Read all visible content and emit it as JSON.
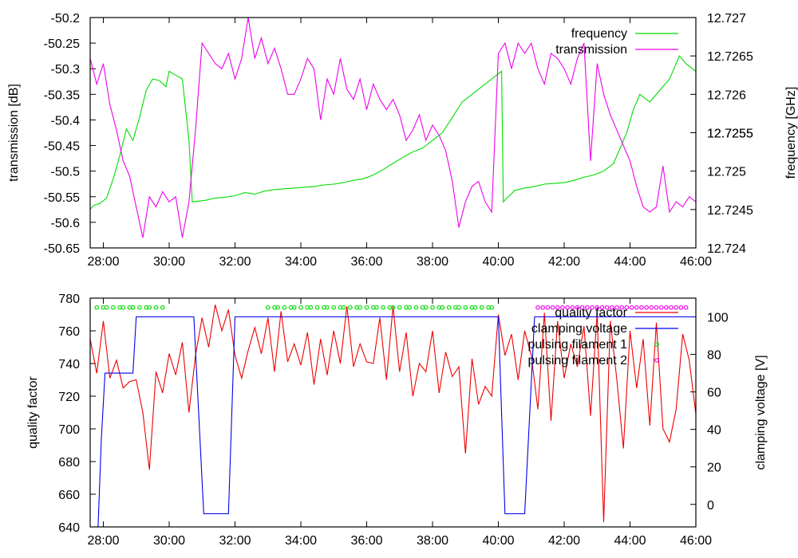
{
  "chart_data": [
    {
      "type": "line",
      "ylabel": "transmission [dB]",
      "y2label": "frequency [GHz]",
      "x_ticks": [
        "28:00",
        "30:00",
        "32:00",
        "34:00",
        "36:00",
        "38:00",
        "40:00",
        "42:00",
        "44:00",
        "46:00"
      ],
      "xlim": [
        27.6,
        46.0
      ],
      "ylim": [
        -50.65,
        -50.2
      ],
      "y_ticks": [
        "-50.2",
        "-50.25",
        "-50.3",
        "-50.35",
        "-50.4",
        "-50.45",
        "-50.5",
        "-50.55",
        "-50.6",
        "-50.65"
      ],
      "y2lim": [
        12.724,
        12.727
      ],
      "y2_ticks": [
        "12.727",
        "12.7265",
        "12.726",
        "12.7255",
        "12.7255",
        "12.725",
        "12.7245",
        "12.724"
      ],
      "legend_position": "top-right",
      "series": [
        {
          "name": "frequency",
          "axis": "right",
          "color": "#00dd00",
          "x": [
            27.6,
            27.7,
            27.9,
            28.1,
            28.3,
            28.5,
            28.7,
            28.9,
            29.1,
            29.3,
            29.5,
            29.7,
            29.9,
            30.0,
            30.2,
            30.4,
            30.6,
            30.7,
            31.1,
            31.4,
            31.7,
            32.0,
            32.3,
            32.6,
            32.9,
            33.2,
            33.5,
            33.8,
            34.1,
            34.4,
            34.7,
            35.0,
            35.3,
            35.6,
            35.9,
            36.2,
            36.5,
            36.8,
            37.1,
            37.4,
            37.7,
            38.0,
            38.3,
            38.6,
            38.9,
            39.2,
            39.5,
            39.8,
            40.1,
            40.15,
            40.5,
            40.8,
            41.1,
            41.4,
            41.7,
            42.0,
            42.3,
            42.6,
            42.9,
            43.2,
            43.5,
            43.7,
            43.9,
            44.1,
            44.3,
            44.6,
            44.9,
            45.2,
            45.5,
            45.7,
            46.0
          ],
          "y": [
            12.7245,
            12.72455,
            12.72458,
            12.72465,
            12.7249,
            12.7252,
            12.72555,
            12.7254,
            12.7257,
            12.72605,
            12.7262,
            12.72618,
            12.7261,
            12.7263,
            12.72625,
            12.7262,
            12.7254,
            12.7246,
            12.72462,
            12.72465,
            12.72466,
            12.72468,
            12.72472,
            12.7247,
            12.72474,
            12.72476,
            12.72477,
            12.72478,
            12.72479,
            12.7248,
            12.72482,
            12.72483,
            12.72485,
            12.72488,
            12.7249,
            12.72495,
            12.72502,
            12.7251,
            12.72518,
            12.72525,
            12.7253,
            12.7254,
            12.7255,
            12.7257,
            12.7259,
            12.726,
            12.7261,
            12.7262,
            12.7263,
            12.7246,
            12.72475,
            12.72478,
            12.7248,
            12.72483,
            12.72484,
            12.72485,
            12.72488,
            12.72492,
            12.72495,
            12.725,
            12.7251,
            12.7253,
            12.7255,
            12.7258,
            12.726,
            12.7259,
            12.72605,
            12.7262,
            12.7265,
            12.7264,
            12.7263
          ]
        },
        {
          "name": "transmission",
          "axis": "left",
          "color": "#ee00ee",
          "x": [
            27.6,
            27.8,
            28.0,
            28.2,
            28.4,
            28.6,
            28.8,
            29.0,
            29.2,
            29.4,
            29.6,
            29.8,
            30.0,
            30.2,
            30.4,
            30.6,
            30.8,
            31.0,
            31.2,
            31.4,
            31.6,
            31.8,
            32.0,
            32.2,
            32.4,
            32.6,
            32.8,
            33.0,
            33.2,
            33.4,
            33.6,
            33.8,
            34.0,
            34.2,
            34.4,
            34.6,
            34.8,
            35.0,
            35.2,
            35.4,
            35.6,
            35.8,
            36.0,
            36.2,
            36.4,
            36.6,
            36.8,
            37.0,
            37.2,
            37.4,
            37.6,
            37.8,
            38.0,
            38.2,
            38.4,
            38.6,
            38.8,
            39.0,
            39.2,
            39.4,
            39.6,
            39.8,
            40.0,
            40.2,
            40.4,
            40.6,
            40.8,
            41.0,
            41.2,
            41.4,
            41.6,
            41.8,
            42.0,
            42.2,
            42.4,
            42.6,
            42.8,
            43.0,
            43.2,
            43.4,
            43.6,
            43.8,
            44.0,
            44.2,
            44.4,
            44.6,
            44.8,
            45.0,
            45.2,
            45.4,
            45.6,
            45.8,
            46.0
          ],
          "y": [
            -50.28,
            -50.33,
            -50.29,
            -50.37,
            -50.42,
            -50.48,
            -50.51,
            -50.57,
            -50.63,
            -50.55,
            -50.57,
            -50.54,
            -50.56,
            -50.55,
            -50.63,
            -50.56,
            -50.42,
            -50.25,
            -50.27,
            -50.29,
            -50.3,
            -50.27,
            -50.32,
            -50.28,
            -50.2,
            -50.28,
            -50.24,
            -50.29,
            -50.26,
            -50.3,
            -50.35,
            -50.35,
            -50.32,
            -50.28,
            -50.3,
            -50.4,
            -50.32,
            -50.35,
            -50.28,
            -50.34,
            -50.36,
            -50.32,
            -50.38,
            -50.33,
            -50.36,
            -50.38,
            -50.36,
            -50.39,
            -50.44,
            -50.42,
            -50.39,
            -50.44,
            -50.41,
            -50.43,
            -50.46,
            -50.52,
            -50.61,
            -50.56,
            -50.53,
            -50.52,
            -50.56,
            -50.58,
            -50.27,
            -50.25,
            -50.3,
            -50.25,
            -50.27,
            -50.25,
            -50.3,
            -50.33,
            -50.27,
            -50.28,
            -50.3,
            -50.33,
            -50.28,
            -50.25,
            -50.48,
            -50.29,
            -50.35,
            -50.39,
            -50.42,
            -50.45,
            -50.48,
            -50.53,
            -50.57,
            -50.58,
            -50.57,
            -50.49,
            -50.58,
            -50.56,
            -50.57,
            -50.55,
            -50.56
          ]
        }
      ]
    },
    {
      "type": "line",
      "ylabel": "quality factor",
      "y2label": "clamping voltage [V]",
      "x_ticks": [
        "28:00",
        "30:00",
        "32:00",
        "34:00",
        "36:00",
        "38:00",
        "40:00",
        "42:00",
        "44:00",
        "46:00"
      ],
      "xlim": [
        27.6,
        46.0
      ],
      "ylim": [
        640,
        780
      ],
      "y_ticks": [
        "640",
        "660",
        "680",
        "700",
        "720",
        "740",
        "760",
        "780"
      ],
      "y2lim": [
        -12,
        110
      ],
      "y2_ticks": [
        "0",
        "20",
        "40",
        "60",
        "80",
        "100"
      ],
      "legend_position": "top-right",
      "series": [
        {
          "name": "quality factor",
          "axis": "left",
          "color": "#ee0000",
          "x": [
            27.6,
            27.8,
            28.0,
            28.2,
            28.4,
            28.6,
            28.8,
            29.0,
            29.2,
            29.4,
            29.6,
            29.8,
            30.0,
            30.2,
            30.4,
            30.6,
            30.8,
            31.0,
            31.2,
            31.4,
            31.6,
            31.8,
            32.0,
            32.2,
            32.4,
            32.6,
            32.8,
            33.0,
            33.2,
            33.4,
            33.6,
            33.8,
            34.0,
            34.2,
            34.4,
            34.6,
            34.8,
            35.0,
            35.2,
            35.4,
            35.6,
            35.8,
            36.0,
            36.2,
            36.4,
            36.6,
            36.8,
            37.0,
            37.2,
            37.4,
            37.6,
            37.8,
            38.0,
            38.2,
            38.4,
            38.6,
            38.8,
            39.0,
            39.2,
            39.4,
            39.6,
            39.8,
            40.0,
            40.2,
            40.4,
            40.6,
            40.8,
            41.0,
            41.2,
            41.4,
            41.6,
            41.8,
            42.0,
            42.2,
            42.4,
            42.6,
            42.8,
            43.0,
            43.2,
            43.4,
            43.6,
            43.8,
            44.0,
            44.2,
            44.4,
            44.6,
            44.8,
            45.0,
            45.2,
            45.4,
            45.6,
            45.8,
            46.0
          ],
          "y": [
            755,
            734,
            766,
            731,
            742,
            725,
            729,
            730,
            710,
            675,
            735,
            722,
            746,
            733,
            753,
            710,
            745,
            768,
            750,
            776,
            760,
            773,
            745,
            731,
            748,
            762,
            746,
            768,
            735,
            772,
            741,
            752,
            739,
            759,
            727,
            755,
            733,
            760,
            740,
            775,
            738,
            752,
            741,
            740,
            768,
            730,
            775,
            735,
            759,
            720,
            740,
            735,
            760,
            722,
            747,
            732,
            738,
            685,
            743,
            715,
            726,
            720,
            770,
            745,
            758,
            730,
            760,
            745,
            712,
            771,
            705,
            766,
            731,
            752,
            738,
            763,
            708,
            771,
            643,
            766,
            730,
            688,
            760,
            725,
            755,
            702,
            765,
            700,
            692,
            712,
            758,
            742,
            709
          ]
        },
        {
          "name": "clamping voltage",
          "axis": "right",
          "color": "#0000ee",
          "x": [
            27.6,
            27.78,
            27.84,
            27.94,
            28.05,
            28.15,
            28.4,
            28.9,
            29.0,
            29.05,
            30.75,
            31.05,
            31.8,
            32.0,
            32.05,
            40.0,
            40.2,
            40.8,
            41.1,
            41.2,
            46.0
          ],
          "y": [
            -18,
            -18,
            -12,
            35,
            70,
            70,
            70,
            70,
            100,
            100,
            100,
            -5,
            -5,
            100,
            100,
            100,
            -5,
            -5,
            100,
            100,
            100
          ]
        },
        {
          "name": "pulsing filament 1",
          "axis": "right",
          "marker": "circle",
          "color": "#00dd00",
          "y_level": 105,
          "x": [
            27.8,
            28.0,
            28.1,
            28.3,
            28.5,
            28.6,
            28.8,
            28.9,
            29.1,
            29.3,
            29.4,
            29.6,
            29.8,
            33.0,
            33.2,
            33.3,
            33.5,
            33.7,
            33.8,
            34.0,
            34.2,
            34.3,
            34.5,
            34.7,
            34.8,
            35.0,
            35.2,
            35.3,
            35.5,
            35.7,
            35.8,
            36.0,
            36.2,
            36.3,
            36.5,
            36.7,
            36.8,
            37.0,
            37.2,
            37.3,
            37.5,
            37.7,
            37.8,
            38.0,
            38.2,
            38.3,
            38.5,
            38.7,
            38.8,
            39.0,
            39.2,
            39.3,
            39.5,
            39.7,
            39.8
          ]
        },
        {
          "name": "pulsing filament 2",
          "axis": "right",
          "marker": "circle",
          "color": "#ee00ee",
          "y_level": 105,
          "x": [
            41.2,
            41.35,
            41.5,
            41.65,
            41.8,
            41.95,
            42.1,
            42.25,
            42.4,
            42.55,
            42.7,
            42.85,
            43.0,
            43.15,
            43.3,
            43.45,
            43.6,
            43.75,
            43.9,
            44.05,
            44.2,
            44.35,
            44.5,
            44.65,
            44.8,
            44.95,
            45.1,
            45.25,
            45.4,
            45.55,
            45.7
          ]
        }
      ]
    }
  ]
}
